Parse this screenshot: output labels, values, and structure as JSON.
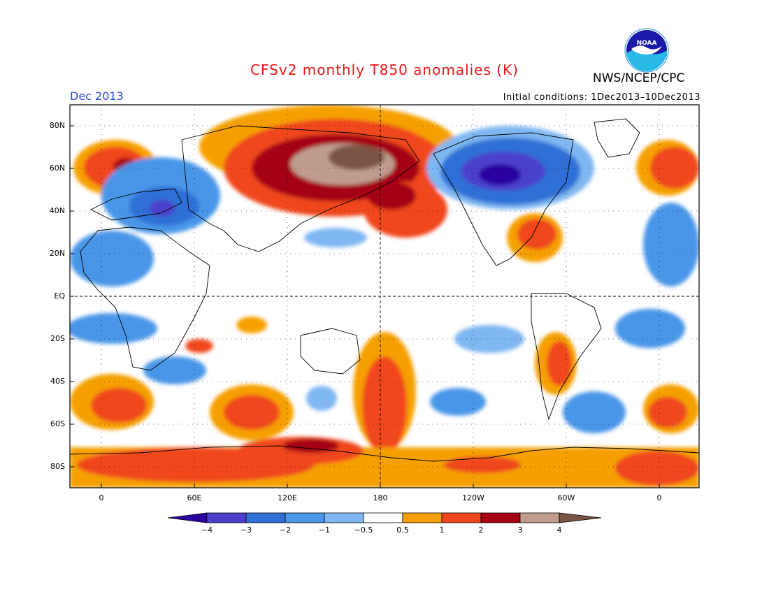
{
  "title": "CFSv2 monthly T850 anomalies (K)",
  "org": "NWS/NCEP/CPC",
  "logo_text": "NOAA",
  "month_label": "Dec 2013",
  "initial_conditions": "Initial conditions: 1Dec2013–10Dec2013",
  "colors": {
    "title": "#e8161b",
    "month": "#2d4bd6",
    "very_cold": "#2a00a0",
    "m3": "#4b3fcc",
    "m2": "#2f6fd6",
    "m1": "#4a96e8",
    "m05": "#7fb7f2",
    "neutral": "#ffffff",
    "p05": "#f5a000",
    "p1": "#f0461e",
    "p2": "#a40012",
    "p3": "#c09c8e",
    "p4": "#7a5444"
  },
  "map": {
    "lat_labels": [
      "80N",
      "60N",
      "40N",
      "20N",
      "EQ",
      "20S",
      "40S",
      "60S",
      "80S"
    ],
    "lon_labels": [
      "0",
      "60E",
      "120E",
      "180",
      "120W",
      "60W",
      "0"
    ]
  },
  "colorbar": {
    "labels": [
      "−4",
      "−3",
      "−2",
      "−1",
      "−0.5",
      "0.5",
      "1",
      "2",
      "3",
      "4"
    ]
  }
}
